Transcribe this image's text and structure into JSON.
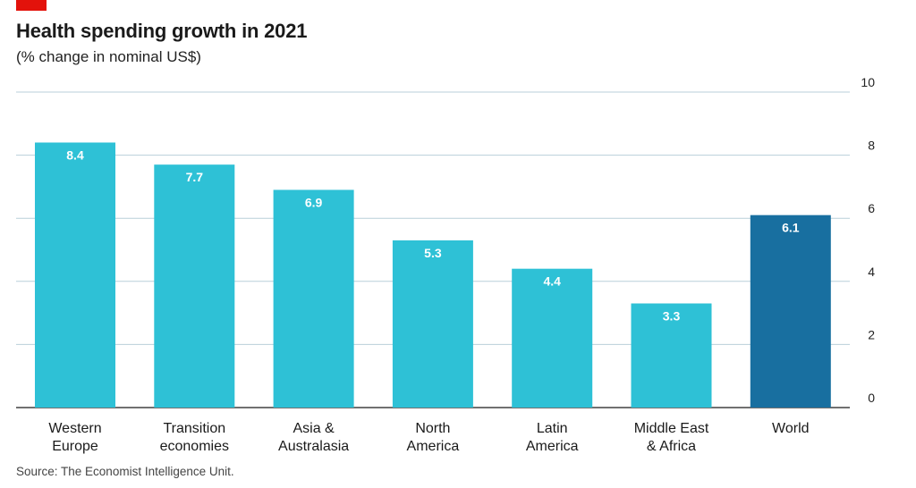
{
  "header": {
    "title": "Health spending growth in 2021",
    "subtitle": "(% change in nominal US$)"
  },
  "footer": {
    "source": "Source: The Economist Intelligence Unit."
  },
  "colors": {
    "bar": "#2ec1d6",
    "highlight": "#186fa0",
    "grid": "#b9cfd9",
    "axis": "#1a1a1a",
    "brand": "#e3120b"
  },
  "chart_data": {
    "type": "bar",
    "title": "Health spending growth in 2021",
    "subtitle": "(% change in nominal US$)",
    "xlabel": "",
    "ylabel": "",
    "ylim": [
      0,
      10
    ],
    "yticks": [
      "0",
      "2",
      "4",
      "6",
      "8",
      "10"
    ],
    "ytick_values": [
      0,
      2,
      4,
      6,
      8,
      10
    ],
    "grid": true,
    "categories": [
      [
        "Western",
        "Europe"
      ],
      [
        "Transition",
        "economies"
      ],
      [
        "Asia &",
        "Australasia"
      ],
      [
        "North",
        "America"
      ],
      [
        "Latin",
        "America"
      ],
      [
        "Middle East",
        "& Africa"
      ],
      [
        "World"
      ]
    ],
    "values": [
      8.4,
      7.7,
      6.9,
      5.3,
      4.4,
      3.3,
      6.1
    ],
    "value_labels": [
      "8.4",
      "7.7",
      "6.9",
      "5.3",
      "4.4",
      "3.3",
      "6.1"
    ],
    "highlight": [
      false,
      false,
      false,
      false,
      false,
      false,
      true
    ]
  }
}
